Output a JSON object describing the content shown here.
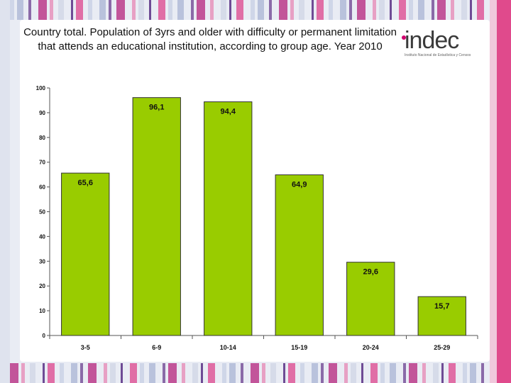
{
  "title": "Country total. Population of 3yrs and older with difficulty or permanent limitation that attends an educational institution, according to group age. Year 2010",
  "logo": {
    "brand_prefix": "in",
    "brand_suffix": "ec",
    "brand_letter": "d",
    "subtitle": "Instituto Nacional de Estadística y Censos",
    "accent_color": "#d0006f"
  },
  "chart_data": {
    "type": "bar",
    "categories": [
      "3-5",
      "6-9",
      "10-14",
      "15-19",
      "20-24",
      "25-29"
    ],
    "values": [
      65.6,
      96.1,
      94.4,
      64.9,
      29.6,
      15.7
    ],
    "value_labels": [
      "65,6",
      "96,1",
      "94,4",
      "64,9",
      "29,6",
      "15,7"
    ],
    "ylim": [
      0,
      100
    ],
    "yticks": [
      0,
      10,
      20,
      30,
      40,
      50,
      60,
      70,
      80,
      90,
      100
    ],
    "bar_color": "#99cc00",
    "grid": false,
    "legend": "none"
  }
}
